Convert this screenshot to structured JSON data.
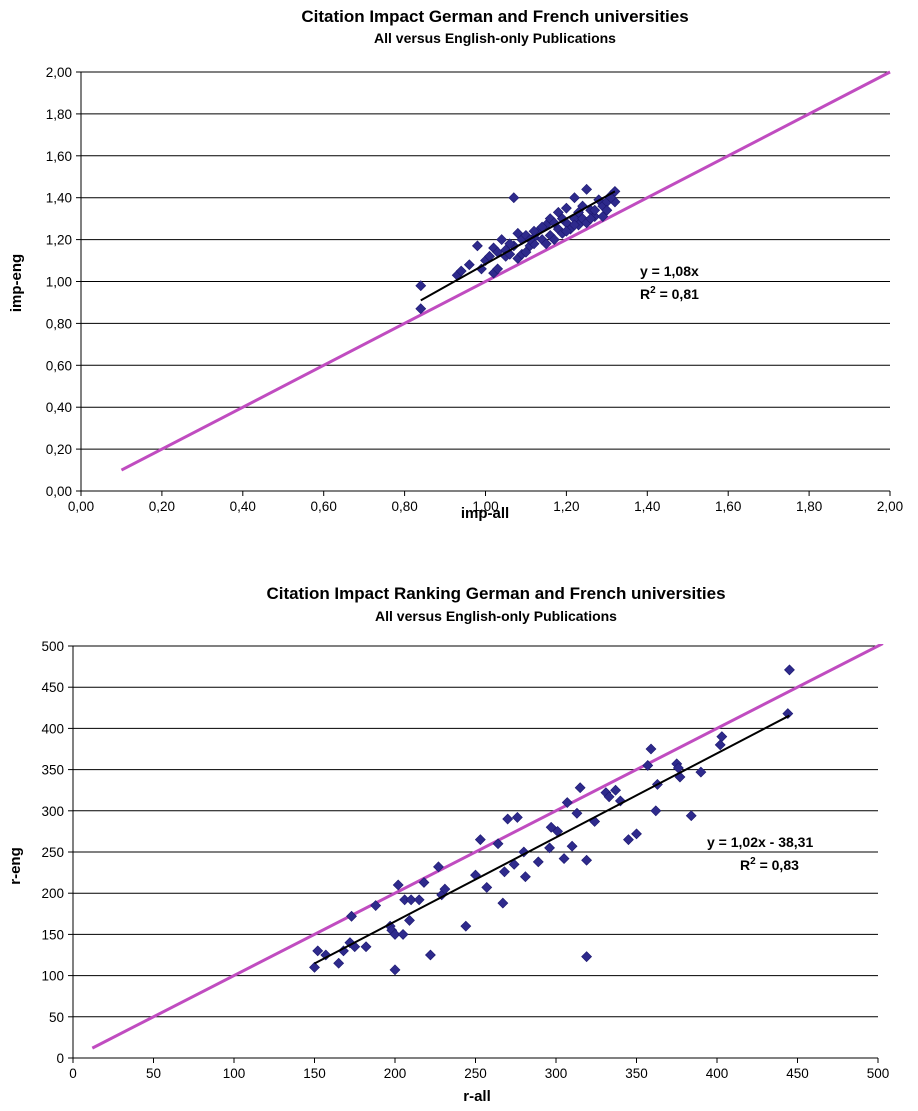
{
  "chart_data": [
    {
      "type": "scatter",
      "title": "Citation Impact German and French universities",
      "subtitle": "All versus English-only Publications",
      "xlabel": "imp-all",
      "ylabel": "imp-eng",
      "xlim": [
        0,
        2
      ],
      "ylim": [
        0,
        2
      ],
      "xticks": [
        "0,00",
        "0,20",
        "0,40",
        "0,60",
        "0,80",
        "1,00",
        "1,20",
        "1,40",
        "1,60",
        "1,80",
        "2,00"
      ],
      "yticks": [
        "0,00",
        "0,20",
        "0,40",
        "0,60",
        "0,80",
        "1,00",
        "1,20",
        "1,40",
        "1,60",
        "1,80",
        "2,00"
      ],
      "grid": "horizontal",
      "colors": {
        "points": "#2e2a8c",
        "diagonal": "#c04cc0",
        "trend": "#000000"
      },
      "points": [
        [
          0.84,
          0.87
        ],
        [
          0.84,
          0.98
        ],
        [
          0.93,
          1.03
        ],
        [
          0.94,
          1.05
        ],
        [
          0.96,
          1.08
        ],
        [
          0.98,
          1.17
        ],
        [
          0.99,
          1.06
        ],
        [
          1.0,
          1.1
        ],
        [
          1.01,
          1.12
        ],
        [
          1.02,
          1.04
        ],
        [
          1.02,
          1.16
        ],
        [
          1.03,
          1.06
        ],
        [
          1.04,
          1.2
        ],
        [
          1.05,
          1.15
        ],
        [
          1.05,
          1.12
        ],
        [
          1.06,
          1.13
        ],
        [
          1.07,
          1.17
        ],
        [
          1.07,
          1.4
        ],
        [
          1.08,
          1.11
        ],
        [
          1.08,
          1.23
        ],
        [
          1.09,
          1.13
        ],
        [
          1.09,
          1.2
        ],
        [
          1.1,
          1.22
        ],
        [
          1.1,
          1.14
        ],
        [
          1.11,
          1.17
        ],
        [
          1.12,
          1.21
        ],
        [
          1.12,
          1.18
        ],
        [
          1.13,
          1.24
        ],
        [
          1.14,
          1.2
        ],
        [
          1.15,
          1.27
        ],
        [
          1.15,
          1.18
        ],
        [
          1.16,
          1.22
        ],
        [
          1.16,
          1.3
        ],
        [
          1.17,
          1.2
        ],
        [
          1.17,
          1.28
        ],
        [
          1.18,
          1.25
        ],
        [
          1.18,
          1.33
        ],
        [
          1.19,
          1.23
        ],
        [
          1.2,
          1.28
        ],
        [
          1.2,
          1.35
        ],
        [
          1.21,
          1.25
        ],
        [
          1.22,
          1.3
        ],
        [
          1.22,
          1.4
        ],
        [
          1.23,
          1.27
        ],
        [
          1.23,
          1.33
        ],
        [
          1.24,
          1.3
        ],
        [
          1.24,
          1.36
        ],
        [
          1.25,
          1.44
        ],
        [
          1.25,
          1.28
        ],
        [
          1.26,
          1.34
        ],
        [
          1.27,
          1.31
        ],
        [
          1.28,
          1.39
        ],
        [
          1.29,
          1.31
        ],
        [
          1.29,
          1.36
        ],
        [
          1.3,
          1.38
        ],
        [
          1.3,
          1.34
        ],
        [
          1.31,
          1.41
        ],
        [
          1.32,
          1.43
        ],
        [
          1.32,
          1.38
        ],
        [
          1.31,
          1.4
        ],
        [
          1.27,
          1.34
        ],
        [
          1.22,
          1.27
        ],
        [
          1.19,
          1.3
        ],
        [
          1.14,
          1.26
        ],
        [
          1.11,
          1.2
        ],
        [
          1.06,
          1.18
        ],
        [
          1.03,
          1.14
        ],
        [
          1.12,
          1.24
        ],
        [
          1.2,
          1.24
        ],
        [
          1.26,
          1.3
        ]
      ],
      "trendline": {
        "x": [
          0.84,
          1.32
        ],
        "y": [
          0.91,
          1.43
        ]
      },
      "diagonal": {
        "x": [
          0.1,
          2.0
        ],
        "y": [
          0.1,
          2.0
        ]
      },
      "equation": "y = 1,08x",
      "r2_prefix": "R",
      "r2_sup": "2",
      "r2_value": " = 0,81"
    },
    {
      "type": "scatter",
      "title": "Citation Impact Ranking German and French universities",
      "subtitle": "All versus English-only Publications",
      "xlabel": "r-all",
      "ylabel": "r-eng",
      "xlim": [
        0,
        500
      ],
      "ylim": [
        0,
        500
      ],
      "xticks": [
        "0",
        "50",
        "100",
        "150",
        "200",
        "250",
        "300",
        "350",
        "400",
        "450",
        "500"
      ],
      "yticks": [
        "0",
        "50",
        "100",
        "150",
        "200",
        "250",
        "300",
        "350",
        "400",
        "450",
        "500"
      ],
      "grid": "horizontal",
      "colors": {
        "points": "#2e2a8c",
        "diagonal": "#c04cc0",
        "trend": "#000000"
      },
      "points": [
        [
          150,
          110
        ],
        [
          152,
          130
        ],
        [
          157,
          125
        ],
        [
          165,
          115
        ],
        [
          168,
          130
        ],
        [
          172,
          140
        ],
        [
          173,
          172
        ],
        [
          175,
          135
        ],
        [
          182,
          135
        ],
        [
          188,
          185
        ],
        [
          197,
          160
        ],
        [
          198,
          155
        ],
        [
          200,
          150
        ],
        [
          200,
          107
        ],
        [
          202,
          210
        ],
        [
          205,
          150
        ],
        [
          206,
          192
        ],
        [
          209,
          167
        ],
        [
          210,
          192
        ],
        [
          215,
          192
        ],
        [
          218,
          213
        ],
        [
          222,
          125
        ],
        [
          227,
          232
        ],
        [
          229,
          198
        ],
        [
          231,
          205
        ],
        [
          244,
          160
        ],
        [
          250,
          222
        ],
        [
          253,
          265
        ],
        [
          257,
          207
        ],
        [
          264,
          260
        ],
        [
          267,
          188
        ],
        [
          268,
          226
        ],
        [
          270,
          290
        ],
        [
          274,
          235
        ],
        [
          276,
          292
        ],
        [
          280,
          250
        ],
        [
          281,
          220
        ],
        [
          289,
          238
        ],
        [
          296,
          255
        ],
        [
          297,
          280
        ],
        [
          301,
          275
        ],
        [
          305,
          242
        ],
        [
          307,
          310
        ],
        [
          310,
          257
        ],
        [
          313,
          297
        ],
        [
          315,
          328
        ],
        [
          319,
          240
        ],
        [
          319,
          123
        ],
        [
          324,
          287
        ],
        [
          331,
          322
        ],
        [
          333,
          317
        ],
        [
          337,
          325
        ],
        [
          340,
          312
        ],
        [
          345,
          265
        ],
        [
          350,
          272
        ],
        [
          357,
          355
        ],
        [
          359,
          375
        ],
        [
          362,
          300
        ],
        [
          363,
          332
        ],
        [
          375,
          357
        ],
        [
          376,
          352
        ],
        [
          377,
          341
        ],
        [
          384,
          294
        ],
        [
          390,
          347
        ],
        [
          402,
          380
        ],
        [
          403,
          390
        ],
        [
          444,
          418
        ],
        [
          445,
          471
        ]
      ],
      "trendline": {
        "x": [
          150,
          445
        ],
        "y": [
          114.69,
          415.59
        ]
      },
      "diagonal": {
        "x": [
          12,
          503
        ],
        "y": [
          12,
          503
        ]
      },
      "equation": "y = 1,02x - 38,31",
      "r2_prefix": "R",
      "r2_sup": "2",
      "r2_value": " = 0,83"
    }
  ]
}
